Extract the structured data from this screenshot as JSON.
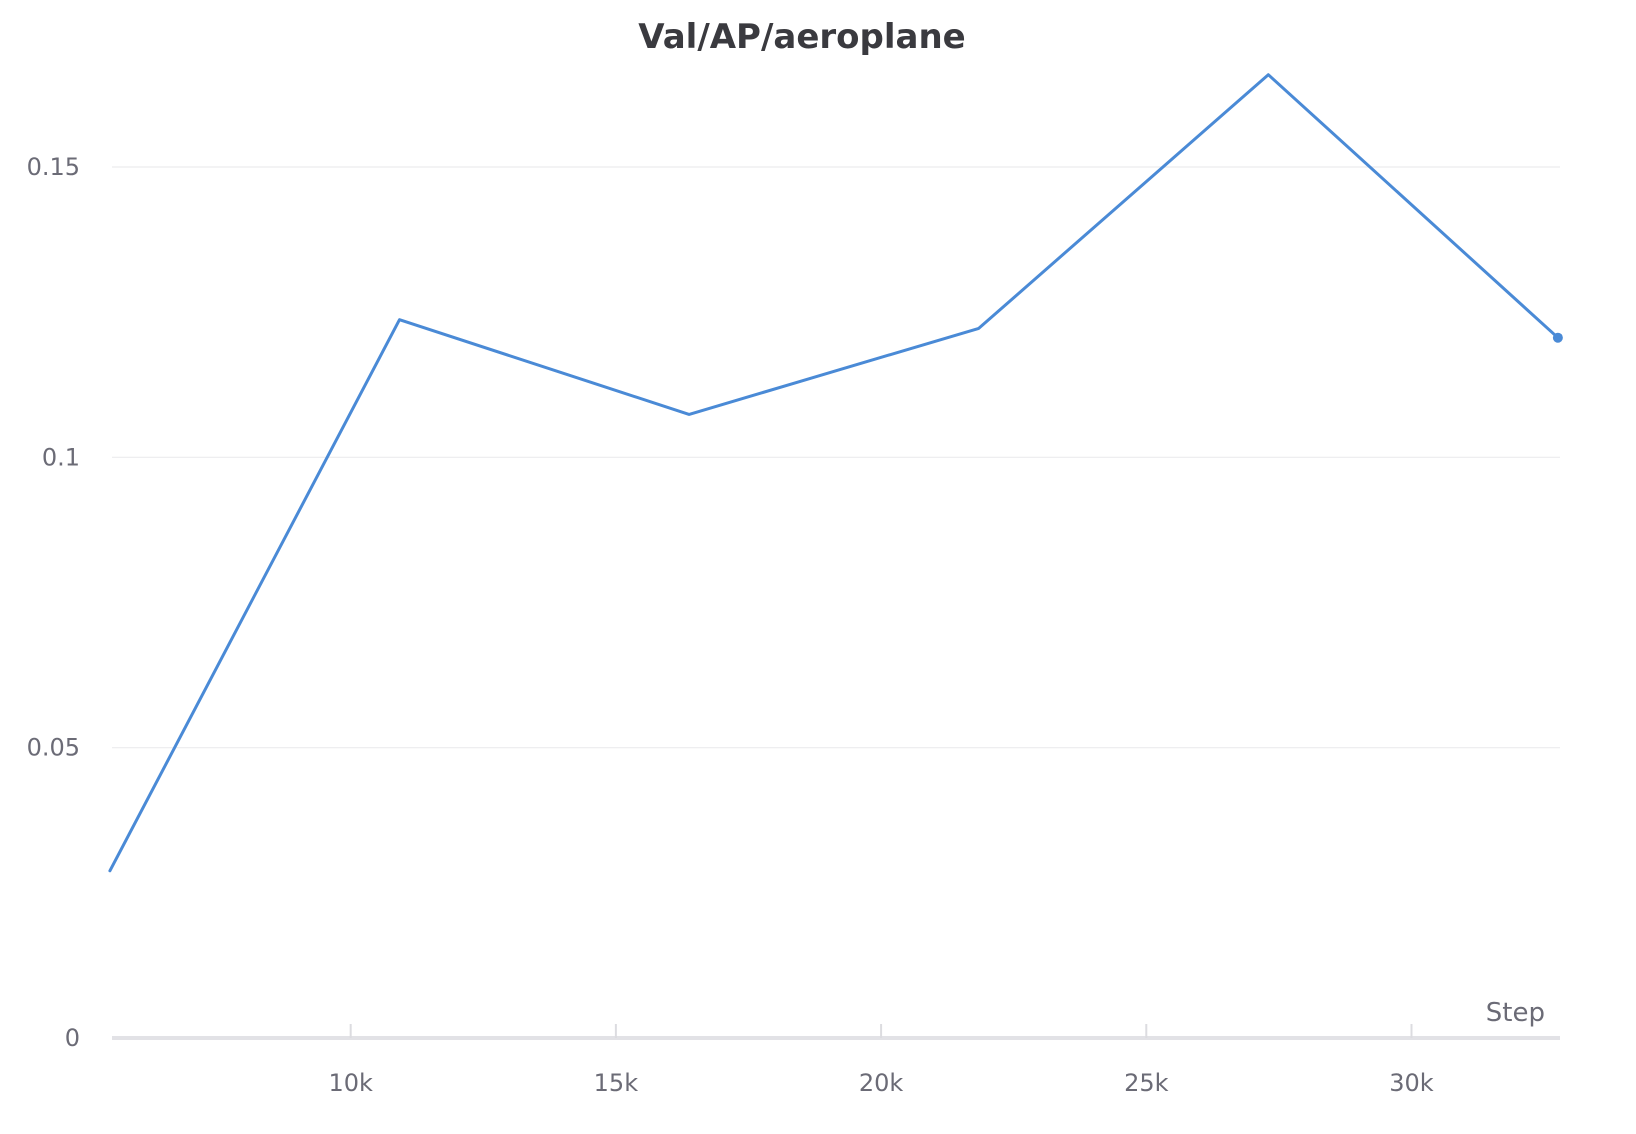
{
  "chart_data": {
    "type": "line",
    "title": "Val/AP/aeroplane",
    "xlabel": "Step",
    "ylabel": "",
    "xlim": [
      5500,
      32800
    ],
    "ylim": [
      0,
      0.15
    ],
    "x_ticks": [
      {
        "value": 10000,
        "label": "10k"
      },
      {
        "value": 15000,
        "label": "15k"
      },
      {
        "value": 20000,
        "label": "20k"
      },
      {
        "value": 25000,
        "label": "25k"
      },
      {
        "value": 30000,
        "label": "30k"
      }
    ],
    "y_ticks": [
      {
        "value": 0,
        "label": "0"
      },
      {
        "value": 0.05,
        "label": "0.05"
      },
      {
        "value": 0.1,
        "label": "0.1"
      },
      {
        "value": 0.15,
        "label": "0.15"
      }
    ],
    "grid": true,
    "series": [
      {
        "color": "#4a8ad6",
        "x": [
          5460,
          10920,
          16380,
          21840,
          27300,
          32760
        ],
        "y": [
          0.0288,
          0.1237,
          0.1074,
          0.1222,
          0.1659,
          0.1206
        ]
      }
    ]
  }
}
